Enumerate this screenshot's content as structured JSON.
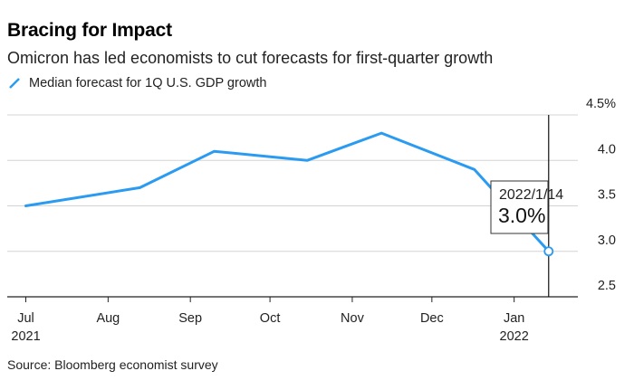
{
  "chart_data": {
    "type": "line",
    "title": "Bracing for Impact",
    "subtitle": "Omicron has led economists to cut forecasts for first-quarter growth",
    "legend": [
      "Median forecast for 1Q U.S. GDP growth"
    ],
    "source": "Source: Bloomberg economist survey",
    "series": [
      {
        "name": "Median forecast for 1Q U.S. GDP growth",
        "color": "#2A9BF1",
        "x": [
          "2021-07-01",
          "2021-08-13",
          "2021-09-10",
          "2021-10-15",
          "2021-11-12",
          "2021-12-17",
          "2022-01-14"
        ],
        "values": [
          3.5,
          3.7,
          4.1,
          4.0,
          4.3,
          3.9,
          3.0
        ]
      }
    ],
    "ylim": [
      2.5,
      4.5
    ],
    "yticks": [
      {
        "value": 4.5,
        "label": "4.5%"
      },
      {
        "value": 4.0,
        "label": "4.0"
      },
      {
        "value": 3.5,
        "label": "3.5"
      },
      {
        "value": 3.0,
        "label": "3.0"
      },
      {
        "value": 2.5,
        "label": "2.5"
      }
    ],
    "xrange": [
      "2021-06-24",
      "2022-01-25"
    ],
    "xticks": [
      {
        "date": "2021-07-01",
        "label": "Jul",
        "sublabel": "2021"
      },
      {
        "date": "2021-08-01",
        "label": "Aug",
        "sublabel": ""
      },
      {
        "date": "2021-09-01",
        "label": "Sep",
        "sublabel": ""
      },
      {
        "date": "2021-10-01",
        "label": "Oct",
        "sublabel": ""
      },
      {
        "date": "2021-11-01",
        "label": "Nov",
        "sublabel": ""
      },
      {
        "date": "2021-12-01",
        "label": "Dec",
        "sublabel": ""
      },
      {
        "date": "2022-01-01",
        "label": "Jan",
        "sublabel": "2022"
      }
    ],
    "tooltip": {
      "date": "2022/1/14",
      "value": "3.0%"
    },
    "grid": true,
    "legend_position": "top-left"
  }
}
